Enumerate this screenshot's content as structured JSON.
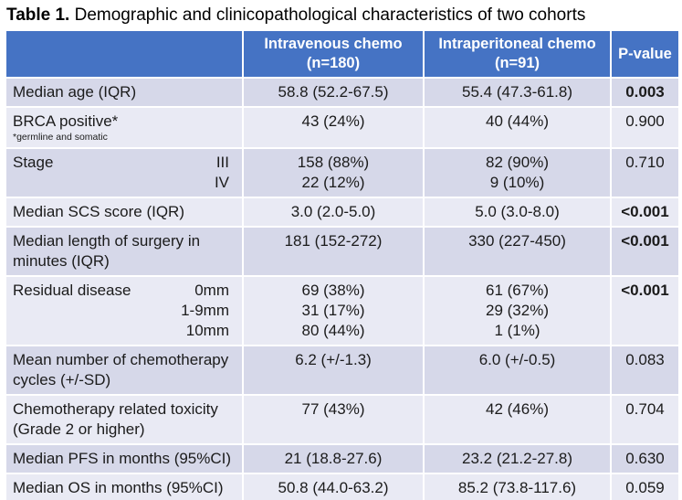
{
  "title": {
    "bold": "Table 1.",
    "rest": " Demographic and clinicopathological characteristics of two cohorts"
  },
  "colors": {
    "header_bg": "#4573C4",
    "header_text": "#FFFFFF",
    "row_dark": "#D6D8E9",
    "row_light": "#E9EAF4",
    "grid": "#FFFFFF",
    "body_text": "#1B1B1B"
  },
  "header": {
    "col_iv": {
      "line1": "Intravenous chemo",
      "line2": "(n=180)"
    },
    "col_ip": {
      "line1": "Intraperitoneal chemo",
      "line2": "(n=91)"
    },
    "col_p": "P-value"
  },
  "rows": [
    {
      "label": "Median age (IQR)",
      "iv": "58.8 (52.2-67.5)",
      "ip": "55.4 (47.3-61.8)",
      "p": "0.003",
      "p_bold": true
    },
    {
      "label": "BRCA positive*",
      "footnote": "*germline and somatic",
      "iv": "43 (24%)",
      "ip": "40 (44%)",
      "p": "0.900",
      "p_bold": false
    },
    {
      "label": "Stage",
      "sublabels": [
        "III",
        "IV"
      ],
      "iv_lines": [
        "158 (88%)",
        "22 (12%)"
      ],
      "ip_lines": [
        "82 (90%)",
        "9 (10%)"
      ],
      "p": "0.710",
      "p_bold": false
    },
    {
      "label": "Median SCS score (IQR)",
      "iv": "3.0 (2.0-5.0)",
      "ip": "5.0 (3.0-8.0)",
      "p": "<0.001",
      "p_bold": true
    },
    {
      "label": "Median length of surgery in minutes (IQR)",
      "iv": "181 (152-272)",
      "ip": "330 (227-450)",
      "p": "<0.001",
      "p_bold": true
    },
    {
      "label": "Residual disease",
      "sublabels": [
        "0mm",
        "1-9mm",
        "10mm"
      ],
      "iv_lines": [
        "69 (38%)",
        "31 (17%)",
        "80 (44%)"
      ],
      "ip_lines": [
        "61 (67%)",
        "29 (32%)",
        "1 (1%)"
      ],
      "p": "<0.001",
      "p_bold": true
    },
    {
      "label": "Mean number of chemotherapy cycles (+/-SD)",
      "iv": "6.2 (+/-1.3)",
      "ip": "6.0 (+/-0.5)",
      "p": "0.083",
      "p_bold": false
    },
    {
      "label": "Chemotherapy related toxicity (Grade 2 or higher)",
      "iv": "77 (43%)",
      "ip": "42 (46%)",
      "p": "0.704",
      "p_bold": false
    },
    {
      "label": "Median PFS in months (95%CI)",
      "iv": "21 (18.8-27.6)",
      "ip": "23.2 (21.2-27.8)",
      "p": "0.630",
      "p_bold": false
    },
    {
      "label": "Median OS in months (95%CI)",
      "iv": "50.8 (44.0-63.2)",
      "ip": "85.2 (73.8-117.6)",
      "p": "0.059",
      "p_bold": false
    }
  ]
}
